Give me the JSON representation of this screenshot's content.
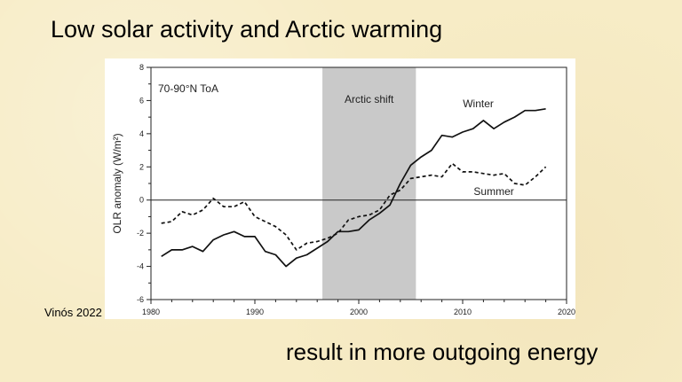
{
  "slide": {
    "title": "Low solar activity and Arctic warming",
    "subtitle": "result in more outgoing energy",
    "credit": "Vinós 2022"
  },
  "chart_data": {
    "type": "line",
    "title": "",
    "panel_label": "70-90°N ToA",
    "xlabel": "",
    "ylabel": "OLR anomaly (W/m²)",
    "xlim": [
      1980,
      2020
    ],
    "ylim": [
      -6,
      8
    ],
    "x_ticks": [
      1980,
      1990,
      2000,
      2010,
      2020
    ],
    "y_ticks": [
      -6,
      -4,
      -2,
      0,
      2,
      4,
      6,
      8
    ],
    "shaded_region": {
      "label": "Arctic shift",
      "x_start": 1996.5,
      "x_end": 2005.5,
      "color": "#c9c9c9"
    },
    "series": [
      {
        "name": "Winter",
        "style": "solid",
        "color": "#111111",
        "x": [
          1981,
          1982,
          1983,
          1984,
          1985,
          1986,
          1987,
          1988,
          1989,
          1990,
          1991,
          1992,
          1993,
          1994,
          1995,
          1996,
          1997,
          1998,
          1999,
          2000,
          2001,
          2002,
          2003,
          2004,
          2005,
          2006,
          2007,
          2008,
          2009,
          2010,
          2011,
          2012,
          2013,
          2014,
          2015,
          2016,
          2017,
          2018
        ],
        "values": [
          -3.4,
          -3.0,
          -3.0,
          -2.8,
          -3.1,
          -2.4,
          -2.1,
          -1.9,
          -2.2,
          -2.2,
          -3.1,
          -3.3,
          -4.0,
          -3.5,
          -3.3,
          -2.9,
          -2.5,
          -1.9,
          -1.9,
          -1.8,
          -1.2,
          -0.8,
          -0.3,
          1.0,
          2.1,
          2.6,
          3.0,
          3.9,
          3.8,
          4.1,
          4.3,
          4.8,
          4.3,
          4.7,
          5.0,
          5.4,
          5.4,
          5.5
        ]
      },
      {
        "name": "Summer",
        "style": "dashed",
        "color": "#111111",
        "x": [
          1981,
          1982,
          1983,
          1984,
          1985,
          1986,
          1987,
          1988,
          1989,
          1990,
          1991,
          1992,
          1993,
          1994,
          1995,
          1996,
          1997,
          1998,
          1999,
          2000,
          2001,
          2002,
          2003,
          2004,
          2005,
          2006,
          2007,
          2008,
          2009,
          2010,
          2011,
          2012,
          2013,
          2014,
          2015,
          2016,
          2017,
          2018
        ],
        "values": [
          -1.4,
          -1.3,
          -0.7,
          -0.9,
          -0.6,
          0.1,
          -0.4,
          -0.4,
          -0.1,
          -1.0,
          -1.3,
          -1.6,
          -2.1,
          -3.0,
          -2.6,
          -2.5,
          -2.3,
          -2.0,
          -1.2,
          -1.0,
          -0.9,
          -0.6,
          0.3,
          0.6,
          1.3,
          1.4,
          1.5,
          1.4,
          2.2,
          1.7,
          1.7,
          1.6,
          1.5,
          1.6,
          1.0,
          0.9,
          1.4,
          2.0
        ]
      }
    ],
    "annotations": [
      {
        "text": "Winter",
        "x": 2011.5,
        "y": 5.6
      },
      {
        "text": "Summer",
        "x": 2013,
        "y": 0.3
      }
    ]
  }
}
